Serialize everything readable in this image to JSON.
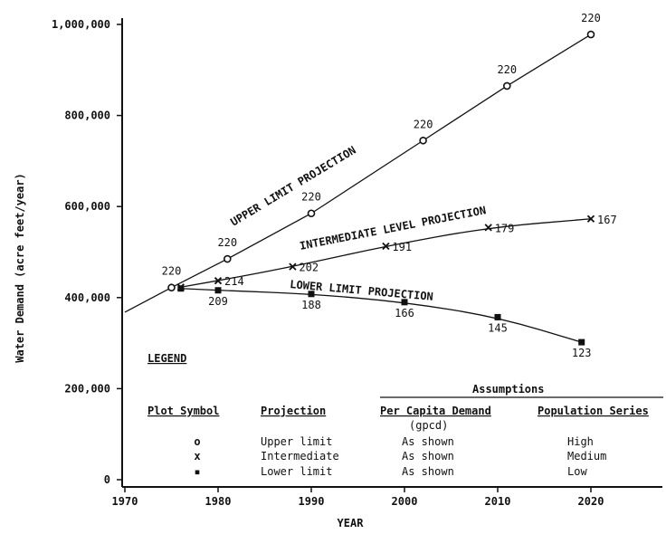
{
  "chart_data": {
    "type": "line",
    "xlabel": "YEAR",
    "ylabel": "Water Demand (acre feet/year)",
    "xlim": [
      1970,
      2026
    ],
    "ylim": [
      0,
      1000000
    ],
    "x_ticks": [
      "1970",
      "1980",
      "1990",
      "2000",
      "2010",
      "2020"
    ],
    "y_ticks": [
      "0",
      "200,000",
      "400,000",
      "600,000",
      "800,000",
      "1,000,000"
    ],
    "grid": false,
    "series": [
      {
        "name": "UPPER LIMIT PROJECTION",
        "marker": "o",
        "points": [
          {
            "x": 1975,
            "y": 422000,
            "label": "220"
          },
          {
            "x": 1981,
            "y": 485000,
            "label": "220"
          },
          {
            "x": 1990,
            "y": 585000,
            "label": "220"
          },
          {
            "x": 2002,
            "y": 745000,
            "label": "220"
          },
          {
            "x": 2011,
            "y": 865000,
            "label": "220"
          },
          {
            "x": 2020,
            "y": 978000,
            "label": "220"
          }
        ],
        "trend_start": {
          "x": 1970,
          "y": 368000
        }
      },
      {
        "name": "INTERMEDIATE LEVEL PROJECTION",
        "marker": "x",
        "points": [
          {
            "x": 1976,
            "y": 423000,
            "label": ""
          },
          {
            "x": 1980,
            "y": 437000,
            "label": "214"
          },
          {
            "x": 1988,
            "y": 468000,
            "label": "202"
          },
          {
            "x": 1998,
            "y": 513000,
            "label": "191"
          },
          {
            "x": 2009,
            "y": 554000,
            "label": "179"
          },
          {
            "x": 2020,
            "y": 573000,
            "label": "167"
          }
        ]
      },
      {
        "name": "LOWER LIMIT PROJECTION",
        "marker": "square",
        "points": [
          {
            "x": 1976,
            "y": 420000,
            "label": ""
          },
          {
            "x": 1980,
            "y": 416000,
            "label": "209"
          },
          {
            "x": 1990,
            "y": 408000,
            "label": "188"
          },
          {
            "x": 2000,
            "y": 390000,
            "label": "166"
          },
          {
            "x": 2010,
            "y": 357000,
            "label": "145"
          },
          {
            "x": 2019,
            "y": 302000,
            "label": "123"
          }
        ]
      }
    ],
    "legend": {
      "title": "LEGEND",
      "assumptions_header": "Assumptions",
      "headers": [
        "Plot Symbol",
        "Projection",
        "Per Capita Demand",
        "Population Series"
      ],
      "units": "(gpcd)",
      "rows": [
        {
          "symbol": "o",
          "projection": "Upper limit",
          "per_capita": "As shown",
          "population": "High"
        },
        {
          "symbol": "x",
          "projection": "Intermediate",
          "per_capita": "As shown",
          "population": "Medium"
        },
        {
          "symbol": "▪",
          "projection": "Lower limit",
          "per_capita": "As shown",
          "population": "Low"
        }
      ]
    }
  }
}
